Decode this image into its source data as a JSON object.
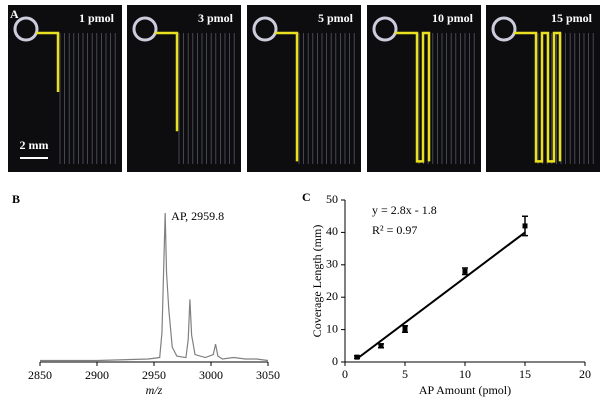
{
  "panel_a": {
    "letter": "A",
    "scale_bar": "2 mm",
    "labels": [
      "1 pmol",
      "3 pmol",
      "5 pmol",
      "10 pmol",
      "15 pmol"
    ]
  },
  "chart_data": [
    {
      "type": "line",
      "panel": "B",
      "annotation": "AP, 2959.8",
      "x_label": "m/z",
      "color": "#808080",
      "x": [
        2850,
        2900,
        2945,
        2955,
        2957,
        2959.8,
        2961,
        2963,
        2966,
        2970,
        2978,
        2980,
        2981.5,
        2983,
        2986,
        2995,
        3002,
        3004,
        3006,
        3010,
        3020,
        3030,
        3040,
        3050
      ],
      "values": [
        1,
        1,
        2,
        3,
        20,
        100,
        60,
        35,
        10,
        4,
        3,
        15,
        42,
        18,
        5,
        3,
        5,
        12,
        4,
        2,
        3,
        2,
        2,
        1
      ],
      "xlim": [
        2850,
        3050
      ],
      "xticks": [
        2850,
        2900,
        2950,
        3000,
        3050
      ],
      "ylim": [
        0,
        100
      ]
    },
    {
      "type": "scatter",
      "panel": "C",
      "x_label": "AP Amount (pmol)",
      "y_label": "Coverage Length (mm)",
      "equation": "y = 2.8x - 1.8",
      "r_squared": "R² = 0.97",
      "color": "#000000",
      "x": [
        1,
        3,
        5,
        10,
        15
      ],
      "values": [
        1.5,
        5,
        10.2,
        28,
        42
      ],
      "errors": [
        0.4,
        0.6,
        1,
        1,
        3
      ],
      "fit": {
        "x": [
          1,
          15
        ],
        "values": [
          1,
          40
        ]
      },
      "xlim": [
        0,
        20
      ],
      "xticks": [
        0,
        5,
        10,
        15,
        20
      ],
      "ylim": [
        0,
        50
      ],
      "yticks": [
        0,
        10,
        20,
        30,
        40,
        50
      ]
    }
  ]
}
